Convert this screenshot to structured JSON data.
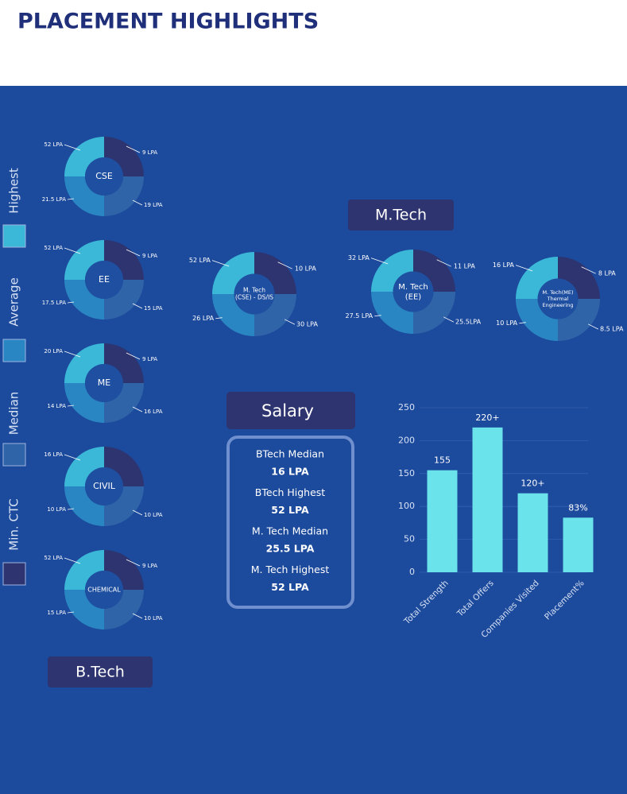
{
  "header": {
    "title": "PLACEMENT HIGHLIGHTS"
  },
  "legend": [
    "Highest",
    "Average",
    "Median",
    "Min. CTC"
  ],
  "btech": {
    "title": "B.Tech",
    "donuts": [
      {
        "name_lines": [
          "CSE"
        ],
        "highest": "52 LPA",
        "min_ctc": "9 LPA",
        "median": "19 LPA",
        "average": "21.5 LPA"
      },
      {
        "name_lines": [
          "EE"
        ],
        "highest": "52 LPA",
        "min_ctc": "9 LPA",
        "median": "15 LPA",
        "average": "17.5 LPA"
      },
      {
        "name_lines": [
          "ME"
        ],
        "highest": "20 LPA",
        "min_ctc": "9 LPA",
        "median": "16 LPA",
        "average": "14 LPA"
      },
      {
        "name_lines": [
          "CIVIL"
        ],
        "highest": "16 LPA",
        "median": "10 LPA",
        "average": "10 LPA"
      },
      {
        "name_lines": [
          "CHEMICAL"
        ],
        "highest": "52 LPA",
        "min_ctc": "9 LPA",
        "median": "10 LPA",
        "average": "15 LPA"
      }
    ]
  },
  "mtech": {
    "title": "M.Tech",
    "donuts": [
      {
        "name_lines": [
          "M. Tech",
          "(CSE) - DS/IS"
        ],
        "highest": "52 LPA",
        "min_ctc": "10 LPA",
        "median": "30 LPA",
        "average": "26 LPA"
      },
      {
        "name_lines": [
          "M. Tech",
          "(EE)"
        ],
        "highest": "32 LPA",
        "min_ctc": "11 LPA",
        "median": "25.5LPA",
        "average": "27.5 LPA"
      },
      {
        "name_lines": [
          "M. Tech(ME)",
          "Thermal",
          "Engineering"
        ],
        "highest": "16 LPA",
        "min_ctc": "8 LPA",
        "median": "8.5 LPA",
        "average": "10 LPA"
      }
    ]
  },
  "salary": {
    "title": "Salary",
    "items": [
      {
        "label": "BTech Median",
        "value": "16 LPA"
      },
      {
        "label": "BTech Highest",
        "value": "52 LPA"
      },
      {
        "label": "M. Tech Median",
        "value": "25.5 LPA"
      },
      {
        "label": "M. Tech Highest",
        "value": "52 LPA"
      }
    ]
  },
  "chart_data": {
    "type": "bar",
    "categories": [
      "Total Strength",
      "Total Offers",
      "Companies Visited",
      "Placement%"
    ],
    "values": [
      155,
      220,
      120,
      83
    ],
    "value_labels": [
      "155",
      "220+",
      "120+",
      "83%"
    ],
    "color": "#6ae3ea",
    "ylim": [
      0,
      250
    ],
    "yticks": [
      0,
      50,
      100,
      150,
      200,
      250
    ],
    "grid": true
  }
}
